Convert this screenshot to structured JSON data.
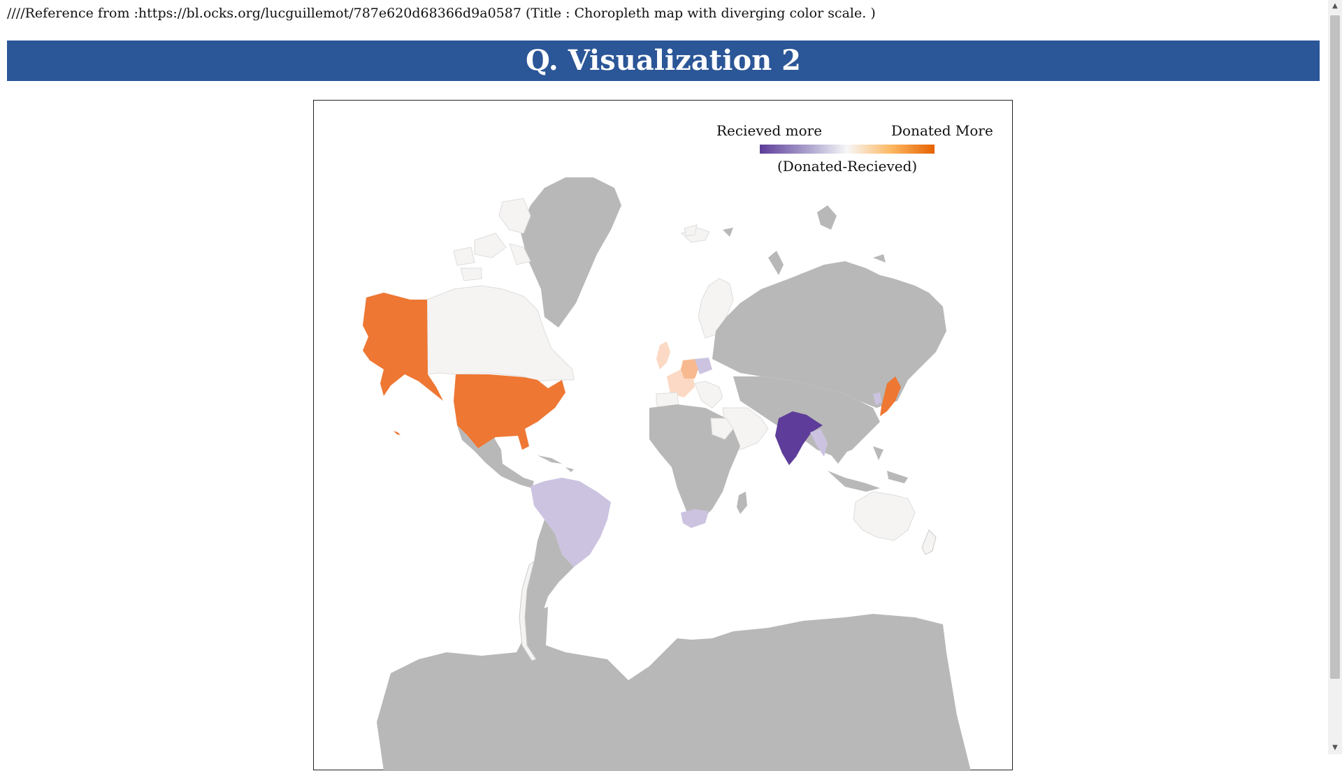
{
  "page": {
    "reference": "////Reference from :https://bl.ocks.org/lucguillemot/787e620d68366d9a0587 (Title : Choropleth map with diverging color scale. )",
    "heading": "Q. Visualization 2"
  },
  "legend": {
    "left_label": "Recieved more",
    "right_label": "Donated More",
    "caption": "(Donated-Recieved)"
  },
  "colors": {
    "banner": "#2b5697",
    "no_data": "#b8b8b8",
    "received_strong": "#5e3c99",
    "received_light": "#cbc3e0",
    "neutral": "#f5f4f3",
    "donated_light": "#fbd9c4",
    "donated_strong": "#ee7733"
  },
  "scrollbar": {
    "up_icon": "▲",
    "down_icon": "▼"
  }
}
